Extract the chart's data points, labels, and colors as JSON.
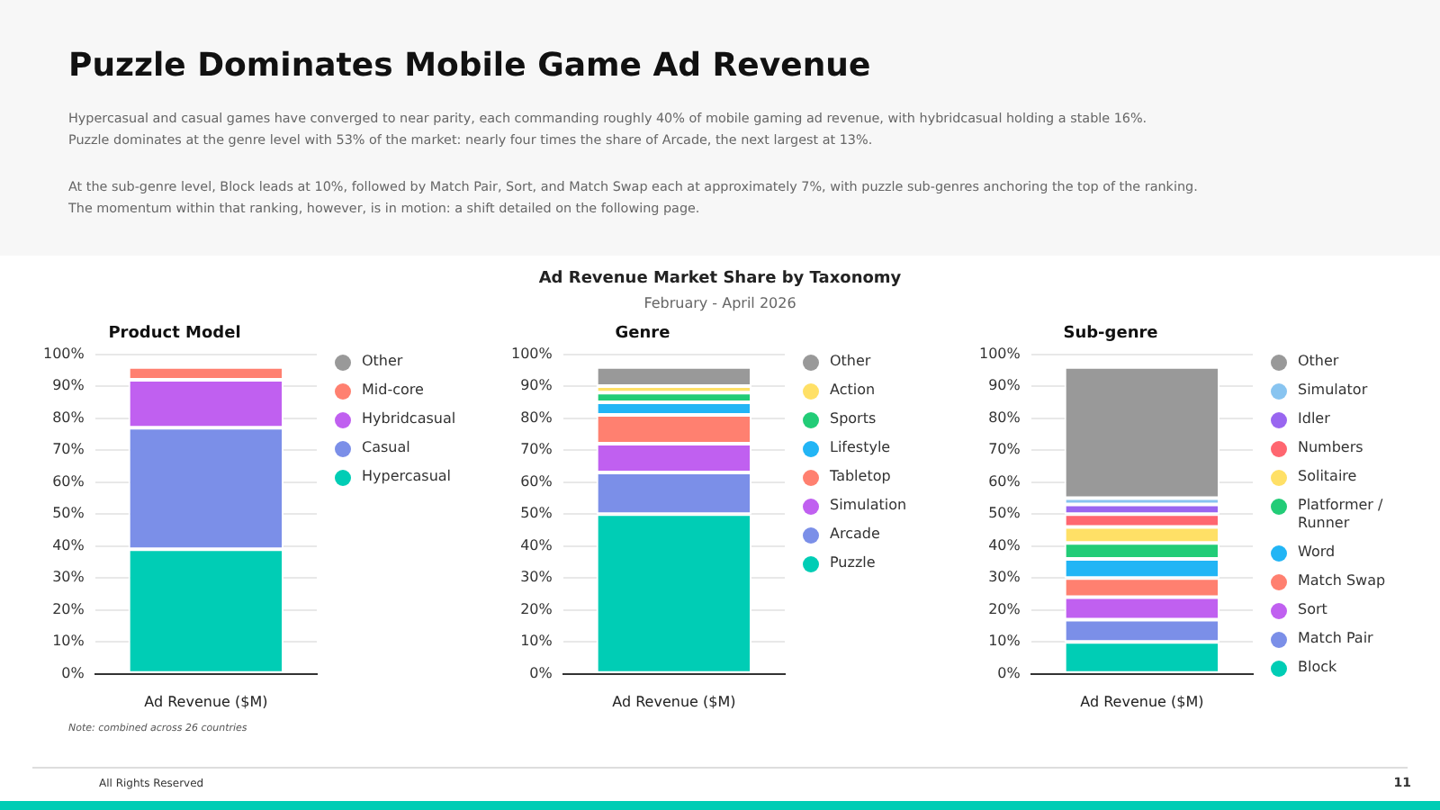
{
  "chart_data": [
    {
      "type": "other",
      "title": "Puzzle Dominates Mobile Game Ad Revenue",
      "annotations": [
        "Hypercasual and casual games have converged to near parity, each commanding roughly 40% of mobile gaming ad revenue, with hybridcasual holding a stable 16%.\nPuzzle dominates at the genre level with 53% of the market: nearly four times the share of Arcade, the next largest at 13%.",
        "At the sub-genre level, Block leads at 10%, followed by Match Pair, Sort, and Match Swap each at approximately 7%, with puzzle sub-genres anchoring the top of the ranking.\nThe momentum within that ranking, however, is in motion: a shift detailed on the following page.",
        "Ad Revenue Market Share by Taxonomy",
        "February - April 2026",
        "Note: combined across 26 countries",
        "All Rights Reserved",
        "11"
      ]
    },
    {
      "type": "bar",
      "title": "Product Model",
      "stacked": true,
      "categories": [
        "Ad Revenue ($M)"
      ],
      "ylim": [
        0,
        100
      ],
      "yticks": [
        {
          "value": 0,
          "label": "0%"
        },
        {
          "value": 10,
          "label": "10%"
        },
        {
          "value": 20,
          "label": "20%"
        },
        {
          "value": 30,
          "label": "30%"
        },
        {
          "value": 40,
          "label": "40%"
        },
        {
          "value": 50,
          "label": "50%"
        },
        {
          "value": 60,
          "label": "60%"
        },
        {
          "value": 70,
          "label": "70%"
        },
        {
          "value": 80,
          "label": "80%"
        },
        {
          "value": 90,
          "label": "90%"
        },
        {
          "value": 100,
          "label": "100%"
        }
      ],
      "grid": "y",
      "legend": "right",
      "series": [
        {
          "name": "Hypercasual",
          "color": "#00cdb5",
          "values": [
            39
          ]
        },
        {
          "name": "Casual",
          "color": "#7b8fe8",
          "values": [
            38
          ]
        },
        {
          "name": "Hybridcasual",
          "color": "#c060f0",
          "values": [
            15
          ]
        },
        {
          "name": "Mid-core",
          "color": "#ff8070",
          "values": [
            4
          ]
        },
        {
          "name": "Other",
          "color": "#999999",
          "values": [
            0
          ]
        }
      ]
    },
    {
      "type": "bar",
      "title": "Genre",
      "stacked": true,
      "categories": [
        "Ad Revenue ($M)"
      ],
      "ylim": [
        0,
        100
      ],
      "yticks": [
        {
          "value": 0,
          "label": "0%"
        },
        {
          "value": 10,
          "label": "10%"
        },
        {
          "value": 20,
          "label": "20%"
        },
        {
          "value": 30,
          "label": "30%"
        },
        {
          "value": 40,
          "label": "40%"
        },
        {
          "value": 50,
          "label": "50%"
        },
        {
          "value": 60,
          "label": "60%"
        },
        {
          "value": 70,
          "label": "70%"
        },
        {
          "value": 80,
          "label": "80%"
        },
        {
          "value": 90,
          "label": "90%"
        },
        {
          "value": 100,
          "label": "100%"
        }
      ],
      "grid": "y",
      "legend": "right",
      "series": [
        {
          "name": "Puzzle",
          "color": "#00cdb5",
          "values": [
            50
          ]
        },
        {
          "name": "Arcade",
          "color": "#7b8fe8",
          "values": [
            13
          ]
        },
        {
          "name": "Simulation",
          "color": "#c060f0",
          "values": [
            9
          ]
        },
        {
          "name": "Tabletop",
          "color": "#ff8070",
          "values": [
            9
          ]
        },
        {
          "name": "Lifestyle",
          "color": "#22b5f5",
          "values": [
            4
          ]
        },
        {
          "name": "Sports",
          "color": "#22cc77",
          "values": [
            3
          ]
        },
        {
          "name": "Action",
          "color": "#ffe066",
          "values": [
            2
          ]
        },
        {
          "name": "Other",
          "color": "#999999",
          "values": [
            6
          ]
        }
      ]
    },
    {
      "type": "bar",
      "title": "Sub-genre",
      "stacked": true,
      "categories": [
        "Ad Revenue ($M)"
      ],
      "ylim": [
        0,
        100
      ],
      "yticks": [
        {
          "value": 0,
          "label": "0%"
        },
        {
          "value": 10,
          "label": "10%"
        },
        {
          "value": 20,
          "label": "20%"
        },
        {
          "value": 30,
          "label": "30%"
        },
        {
          "value": 40,
          "label": "40%"
        },
        {
          "value": 50,
          "label": "50%"
        },
        {
          "value": 60,
          "label": "60%"
        },
        {
          "value": 70,
          "label": "70%"
        },
        {
          "value": 80,
          "label": "80%"
        },
        {
          "value": 90,
          "label": "90%"
        },
        {
          "value": 100,
          "label": "100%"
        }
      ],
      "grid": "y",
      "legend": "right",
      "series": [
        {
          "name": "Block",
          "color": "#00cdb5",
          "values": [
            10
          ]
        },
        {
          "name": "Match Pair",
          "color": "#7b8fe8",
          "values": [
            7
          ]
        },
        {
          "name": "Sort",
          "color": "#c060f0",
          "values": [
            7
          ]
        },
        {
          "name": "Match Swap",
          "color": "#ff8070",
          "values": [
            6
          ]
        },
        {
          "name": "Word",
          "color": "#22b5f5",
          "values": [
            6
          ]
        },
        {
          "name": "Platformer / Runner",
          "color": "#22cc77",
          "values": [
            5
          ]
        },
        {
          "name": "Solitaire",
          "color": "#ffe066",
          "values": [
            5
          ]
        },
        {
          "name": "Numbers",
          "color": "#ff6670",
          "values": [
            4
          ]
        },
        {
          "name": "Idler",
          "color": "#9966f0",
          "values": [
            3
          ]
        },
        {
          "name": "Simulator",
          "color": "#88c4f0",
          "values": [
            2
          ]
        },
        {
          "name": "Other",
          "color": "#999999",
          "values": [
            41
          ]
        }
      ]
    }
  ]
}
